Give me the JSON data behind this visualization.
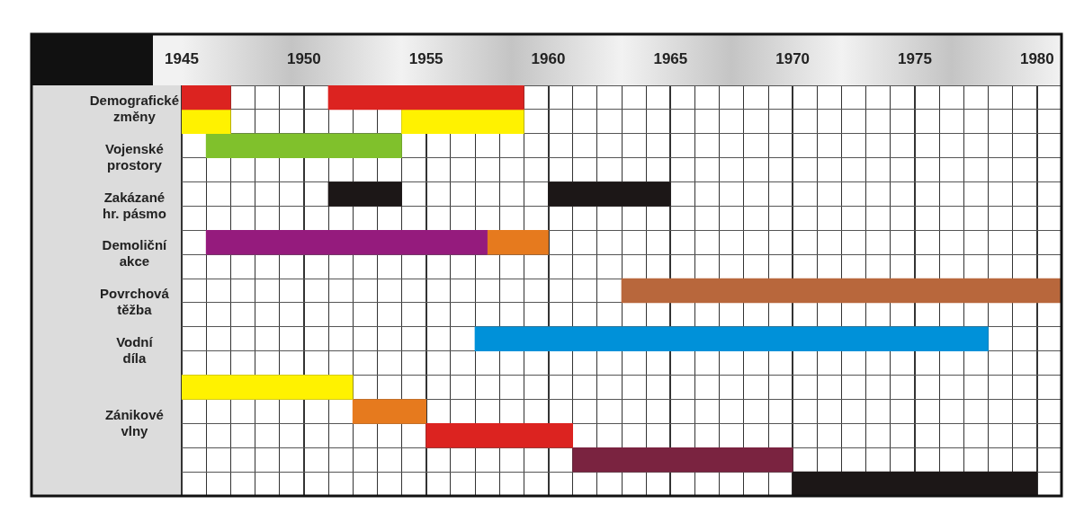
{
  "chart_data": {
    "type": "bar",
    "orientation": "horizontal",
    "grid": true,
    "legend": false,
    "categories": [
      "Demografické změny",
      null,
      "Vojenské prostory",
      null,
      "Zakázané hr. pásmo",
      null,
      "Demoliční akce",
      null,
      "Povrchová těžba",
      null,
      "Vodní díla",
      null,
      null,
      "Zánikové vlny",
      null,
      null,
      null
    ],
    "xlim": [
      1945,
      1981
    ],
    "xticks": [
      1945,
      {
        "value": 1946,
        "label": null
      },
      {
        "value": 1947,
        "label": null
      },
      {
        "value": 1948,
        "label": null
      },
      {
        "value": 1949,
        "label": null
      },
      1950,
      {
        "value": 1951,
        "label": null
      },
      {
        "value": 1952,
        "label": null
      },
      {
        "value": 1953,
        "label": null
      },
      {
        "value": 1954,
        "label": null
      },
      1955,
      {
        "value": 1956,
        "label": null
      },
      {
        "value": 1957,
        "label": null
      },
      {
        "value": 1958,
        "label": null
      },
      {
        "value": 1959,
        "label": null
      },
      1960,
      {
        "value": 1961,
        "label": null
      },
      {
        "value": 1962,
        "label": null
      },
      {
        "value": 1963,
        "label": null
      },
      {
        "value": 1964,
        "label": null
      },
      1965,
      {
        "value": 1966,
        "label": null
      },
      {
        "value": 1967,
        "label": null
      },
      {
        "value": 1968,
        "label": null
      },
      {
        "value": 1969,
        "label": null
      },
      1970,
      {
        "value": 1971,
        "label": null
      },
      {
        "value": 1972,
        "label": null
      },
      {
        "value": 1973,
        "label": null
      },
      {
        "value": 1974,
        "label": null
      },
      1975,
      {
        "value": 1976,
        "label": null
      },
      {
        "value": 1977,
        "label": null
      },
      {
        "value": 1978,
        "label": null
      },
      {
        "value": 1979,
        "label": null
      },
      1980,
      {
        "value": 1981,
        "label": null
      }
    ],
    "series": [
      {
        "color": "#dc2320",
        "base": [
          1945,
          null,
          null,
          null,
          null,
          null,
          null,
          null,
          null,
          null,
          null,
          null,
          null,
          null,
          1955,
          null,
          null
        ],
        "values": [
          2,
          null,
          null,
          null,
          null,
          null,
          null,
          null,
          null,
          null,
          null,
          null,
          null,
          null,
          6,
          null,
          null
        ]
      },
      {
        "color": "#dc2320",
        "base": [
          1951,
          null,
          null,
          null,
          null,
          null,
          null,
          null,
          null,
          null,
          null,
          null,
          null,
          null,
          null,
          null,
          null
        ],
        "values": [
          8,
          null,
          null,
          null,
          null,
          null,
          null,
          null,
          null,
          null,
          null,
          null,
          null,
          null,
          null,
          null,
          null
        ]
      },
      {
        "color": "#fff200",
        "base": [
          null,
          1945,
          null,
          null,
          null,
          null,
          null,
          null,
          null,
          null,
          null,
          null,
          1945,
          null,
          null,
          null,
          null
        ],
        "values": [
          null,
          2,
          null,
          null,
          null,
          null,
          null,
          null,
          null,
          null,
          null,
          null,
          7,
          null,
          null,
          null,
          null
        ]
      },
      {
        "color": "#fff200",
        "base": [
          null,
          1954,
          null,
          null,
          null,
          null,
          null,
          null,
          null,
          null,
          null,
          null,
          null,
          null,
          null,
          null,
          null
        ],
        "values": [
          null,
          5,
          null,
          null,
          null,
          null,
          null,
          null,
          null,
          null,
          null,
          null,
          null,
          null,
          null,
          null,
          null
        ]
      },
      {
        "color": "#80c12c",
        "base": [
          null,
          null,
          1946,
          null,
          null,
          null,
          null,
          null,
          null,
          null,
          null,
          null,
          null,
          null,
          null,
          null,
          null
        ],
        "values": [
          null,
          null,
          8,
          null,
          null,
          null,
          null,
          null,
          null,
          null,
          null,
          null,
          null,
          null,
          null,
          null,
          null
        ]
      },
      {
        "color": "#1c1717",
        "base": [
          null,
          null,
          null,
          null,
          1951,
          null,
          null,
          null,
          null,
          null,
          null,
          null,
          null,
          null,
          null,
          null,
          1970
        ],
        "values": [
          null,
          null,
          null,
          null,
          3,
          null,
          null,
          null,
          null,
          null,
          null,
          null,
          null,
          null,
          null,
          null,
          10
        ]
      },
      {
        "color": "#1c1717",
        "base": [
          null,
          null,
          null,
          null,
          1960,
          null,
          null,
          null,
          null,
          null,
          null,
          null,
          null,
          null,
          null,
          null,
          null
        ],
        "values": [
          null,
          null,
          null,
          null,
          5,
          null,
          null,
          null,
          null,
          null,
          null,
          null,
          null,
          null,
          null,
          null,
          null
        ]
      },
      {
        "color": "#951b7d",
        "base": [
          null,
          null,
          null,
          null,
          null,
          null,
          1946,
          null,
          null,
          null,
          null,
          null,
          null,
          null,
          null,
          null,
          null
        ],
        "values": [
          null,
          null,
          null,
          null,
          null,
          null,
          11.5,
          null,
          null,
          null,
          null,
          null,
          null,
          null,
          null,
          null,
          null
        ]
      },
      {
        "color": "#e67a1e",
        "base": [
          null,
          null,
          null,
          null,
          null,
          null,
          1957.5,
          null,
          null,
          null,
          null,
          null,
          null,
          1952,
          null,
          null,
          null
        ],
        "values": [
          null,
          null,
          null,
          null,
          null,
          null,
          2.5,
          null,
          null,
          null,
          null,
          null,
          null,
          3,
          null,
          null,
          null
        ]
      },
      {
        "color": "#b8673c",
        "base": [
          null,
          null,
          null,
          null,
          null,
          null,
          null,
          null,
          1963,
          null,
          null,
          null,
          null,
          null,
          null,
          null,
          null
        ],
        "values": [
          null,
          null,
          null,
          null,
          null,
          null,
          null,
          null,
          18,
          null,
          null,
          null,
          null,
          null,
          null,
          null,
          null
        ]
      },
      {
        "color": "#0091d9",
        "base": [
          null,
          null,
          null,
          null,
          null,
          null,
          null,
          null,
          null,
          null,
          1957,
          null,
          null,
          null,
          null,
          null,
          null
        ],
        "values": [
          null,
          null,
          null,
          null,
          null,
          null,
          null,
          null,
          null,
          null,
          21,
          null,
          null,
          null,
          null,
          null,
          null
        ]
      },
      {
        "color": "#7a2340",
        "base": [
          null,
          null,
          null,
          null,
          null,
          null,
          null,
          null,
          null,
          null,
          null,
          null,
          null,
          null,
          null,
          1961,
          null
        ],
        "values": [
          null,
          null,
          null,
          null,
          null,
          null,
          null,
          null,
          null,
          null,
          null,
          null,
          null,
          null,
          null,
          9,
          null
        ]
      }
    ]
  }
}
